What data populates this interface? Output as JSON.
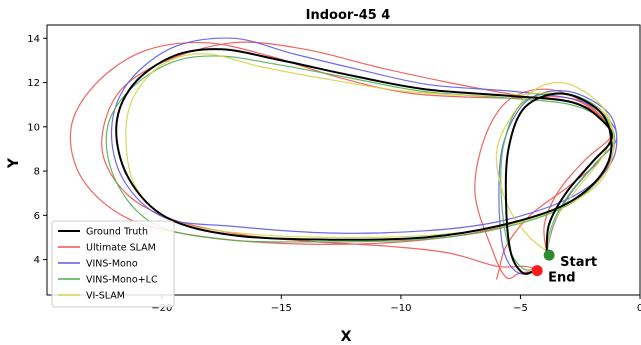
{
  "chart_data": {
    "type": "line",
    "title": "Indoor-45 4",
    "xlabel": "X",
    "ylabel": "Y",
    "xlim": [
      -24.8,
      0.0
    ],
    "ylim": [
      2.4,
      14.6
    ],
    "xticks": [
      -20,
      -15,
      -10,
      -5,
      0
    ],
    "yticks": [
      4,
      6,
      8,
      10,
      12,
      14
    ],
    "xtick_labels": [
      "−20",
      "−15",
      "−10",
      "−5",
      "0"
    ],
    "ytick_labels": [
      "4",
      "6",
      "8",
      "10",
      "12",
      "14"
    ],
    "grid": false,
    "legend_position": "lower-left",
    "series": [
      {
        "name": "Ground Truth",
        "color": "#000000",
        "points": [
          [
            -3.9,
            4.3
          ],
          [
            -3.8,
            5.6
          ],
          [
            -3.1,
            7.0
          ],
          [
            -2.0,
            8.4
          ],
          [
            -1.2,
            9.4
          ],
          [
            -1.5,
            10.2
          ],
          [
            -2.8,
            11.1
          ],
          [
            -5.5,
            11.4
          ],
          [
            -9.0,
            11.7
          ],
          [
            -12.0,
            12.3
          ],
          [
            -15.0,
            13.0
          ],
          [
            -17.5,
            13.5
          ],
          [
            -19.5,
            13.2
          ],
          [
            -21.2,
            11.9
          ],
          [
            -21.9,
            10.0
          ],
          [
            -21.4,
            7.7
          ],
          [
            -19.8,
            5.9
          ],
          [
            -17.0,
            5.1
          ],
          [
            -13.0,
            4.9
          ],
          [
            -9.0,
            5.0
          ],
          [
            -6.0,
            5.5
          ],
          [
            -3.3,
            6.4
          ],
          [
            -1.8,
            7.6
          ],
          [
            -1.2,
            9.0
          ],
          [
            -1.6,
            10.6
          ],
          [
            -3.2,
            11.5
          ],
          [
            -4.8,
            10.9
          ],
          [
            -5.5,
            9.0
          ],
          [
            -5.6,
            6.5
          ],
          [
            -5.4,
            4.3
          ],
          [
            -4.9,
            3.4
          ],
          [
            -4.4,
            3.5
          ]
        ]
      },
      {
        "name": "Ultimate SLAM",
        "color": "#ef5350",
        "points": [
          [
            -3.9,
            4.3
          ],
          [
            -4.0,
            5.6
          ],
          [
            -3.4,
            7.1
          ],
          [
            -2.3,
            8.5
          ],
          [
            -1.2,
            9.6
          ],
          [
            -1.6,
            10.4
          ],
          [
            -3.0,
            11.3
          ],
          [
            -5.8,
            11.3
          ],
          [
            -9.5,
            11.5
          ],
          [
            -12.5,
            12.2
          ],
          [
            -15.5,
            13.2
          ],
          [
            -18.2,
            13.8
          ],
          [
            -20.8,
            13.4
          ],
          [
            -22.8,
            11.9
          ],
          [
            -23.8,
            9.9
          ],
          [
            -23.3,
            7.6
          ],
          [
            -21.3,
            5.8
          ],
          [
            -18.0,
            5.0
          ],
          [
            -14.0,
            4.7
          ],
          [
            -10.0,
            4.8
          ],
          [
            -6.5,
            5.3
          ],
          [
            -3.5,
            6.3
          ],
          [
            -1.8,
            7.5
          ],
          [
            -1.1,
            9.0
          ],
          [
            -1.4,
            10.2
          ],
          [
            -2.5,
            11.2
          ],
          [
            -4.0,
            11.7
          ],
          [
            -5.5,
            11.2
          ],
          [
            -6.5,
            9.5
          ],
          [
            -6.9,
            7.0
          ],
          [
            -6.2,
            4.5
          ],
          [
            -5.6,
            3.2
          ],
          [
            -5.0,
            3.4
          ],
          [
            -4.2,
            3.5
          ],
          [
            -4.4,
            3.6
          ],
          [
            -4.9,
            3.7
          ],
          [
            -6.0,
            3.7
          ],
          [
            -8.0,
            4.3
          ],
          [
            -10.5,
            4.6
          ],
          [
            -13.5,
            4.8
          ],
          [
            -16.5,
            5.1
          ],
          [
            -19.5,
            5.8
          ],
          [
            -21.5,
            7.0
          ],
          [
            -22.5,
            9.0
          ],
          [
            -21.9,
            11.4
          ],
          [
            -20.0,
            12.9
          ],
          [
            -17.0,
            13.8
          ],
          [
            -14.0,
            13.5
          ],
          [
            -11.0,
            12.7
          ],
          [
            -8.0,
            12.0
          ],
          [
            -5.0,
            11.4
          ],
          [
            -2.5,
            11.0
          ],
          [
            -1.3,
            10.0
          ],
          [
            -1.6,
            8.6
          ],
          [
            -3.0,
            7.3
          ],
          [
            -4.6,
            6.0
          ],
          [
            -5.6,
            4.6
          ],
          [
            -5.9,
            3.5
          ],
          [
            -6.0,
            3.1
          ]
        ]
      },
      {
        "name": "VINS-Mono",
        "color": "#5c5ce6",
        "points": [
          [
            -3.9,
            4.3
          ],
          [
            -3.6,
            5.6
          ],
          [
            -2.9,
            7.0
          ],
          [
            -1.8,
            8.4
          ],
          [
            -1.0,
            9.4
          ],
          [
            -1.3,
            10.3
          ],
          [
            -2.6,
            11.2
          ],
          [
            -5.3,
            11.6
          ],
          [
            -8.8,
            11.9
          ],
          [
            -11.8,
            12.6
          ],
          [
            -14.5,
            13.3
          ],
          [
            -17.0,
            14.0
          ],
          [
            -19.5,
            13.6
          ],
          [
            -21.4,
            12.0
          ],
          [
            -22.1,
            9.9
          ],
          [
            -21.6,
            7.6
          ],
          [
            -19.9,
            5.9
          ],
          [
            -17.0,
            5.5
          ],
          [
            -13.0,
            5.2
          ],
          [
            -9.0,
            5.3
          ],
          [
            -6.0,
            5.7
          ],
          [
            -3.3,
            6.6
          ],
          [
            -1.7,
            7.7
          ],
          [
            -1.0,
            9.0
          ],
          [
            -1.3,
            10.6
          ],
          [
            -3.0,
            11.6
          ],
          [
            -4.7,
            11.2
          ],
          [
            -5.7,
            9.3
          ],
          [
            -5.9,
            6.8
          ],
          [
            -5.7,
            4.4
          ],
          [
            -5.1,
            3.4
          ],
          [
            -4.3,
            3.5
          ]
        ]
      },
      {
        "name": "VINS-Mono+LC",
        "color": "#4caf50",
        "points": [
          [
            -3.9,
            4.3
          ],
          [
            -3.7,
            5.5
          ],
          [
            -3.0,
            6.9
          ],
          [
            -1.9,
            8.3
          ],
          [
            -1.1,
            9.3
          ],
          [
            -1.4,
            10.2
          ],
          [
            -2.9,
            11.0
          ],
          [
            -5.6,
            11.3
          ],
          [
            -9.1,
            11.6
          ],
          [
            -12.1,
            12.2
          ],
          [
            -15.1,
            12.8
          ],
          [
            -17.6,
            13.2
          ],
          [
            -19.6,
            12.9
          ],
          [
            -21.4,
            11.6
          ],
          [
            -22.3,
            9.8
          ],
          [
            -21.9,
            7.5
          ],
          [
            -20.3,
            5.6
          ],
          [
            -17.3,
            4.9
          ],
          [
            -13.3,
            4.8
          ],
          [
            -9.3,
            4.9
          ],
          [
            -6.3,
            5.3
          ],
          [
            -3.5,
            6.2
          ],
          [
            -1.9,
            7.4
          ],
          [
            -1.2,
            8.9
          ],
          [
            -1.5,
            10.6
          ],
          [
            -3.1,
            11.5
          ],
          [
            -4.9,
            11.1
          ],
          [
            -5.7,
            9.2
          ],
          [
            -5.8,
            6.8
          ],
          [
            -5.5,
            4.6
          ],
          [
            -4.9,
            3.6
          ],
          [
            -4.3,
            3.6
          ]
        ]
      },
      {
        "name": "VI-SLAM",
        "color": "#d4d44a",
        "points": [
          [
            -3.9,
            4.3
          ],
          [
            -3.6,
            5.7
          ],
          [
            -2.7,
            7.1
          ],
          [
            -1.6,
            8.6
          ],
          [
            -1.2,
            9.8
          ],
          [
            -1.7,
            10.8
          ],
          [
            -3.4,
            11.5
          ],
          [
            -6.3,
            11.4
          ],
          [
            -9.8,
            11.6
          ],
          [
            -12.8,
            12.1
          ],
          [
            -15.8,
            12.7
          ],
          [
            -18.2,
            13.3
          ],
          [
            -20.0,
            12.8
          ],
          [
            -21.2,
            11.3
          ],
          [
            -21.5,
            9.5
          ],
          [
            -21.1,
            7.3
          ],
          [
            -19.6,
            5.8
          ],
          [
            -16.8,
            5.2
          ],
          [
            -12.8,
            5.0
          ],
          [
            -8.8,
            5.1
          ],
          [
            -5.8,
            5.5
          ],
          [
            -3.2,
            6.4
          ],
          [
            -1.6,
            7.6
          ],
          [
            -1.1,
            9.2
          ],
          [
            -1.5,
            10.8
          ],
          [
            -2.9,
            11.9
          ],
          [
            -4.2,
            11.8
          ],
          [
            -5.3,
            10.6
          ],
          [
            -6.0,
            8.8
          ],
          [
            -5.6,
            6.6
          ],
          [
            -4.7,
            5.1
          ],
          [
            -3.8,
            4.3
          ]
        ]
      }
    ],
    "markers": [
      {
        "label": "Start",
        "x": -3.8,
        "y": 4.2,
        "color": "#2e8b2e"
      },
      {
        "label": "End",
        "x": -4.3,
        "y": 3.5,
        "color": "#ff1a1a"
      }
    ]
  }
}
